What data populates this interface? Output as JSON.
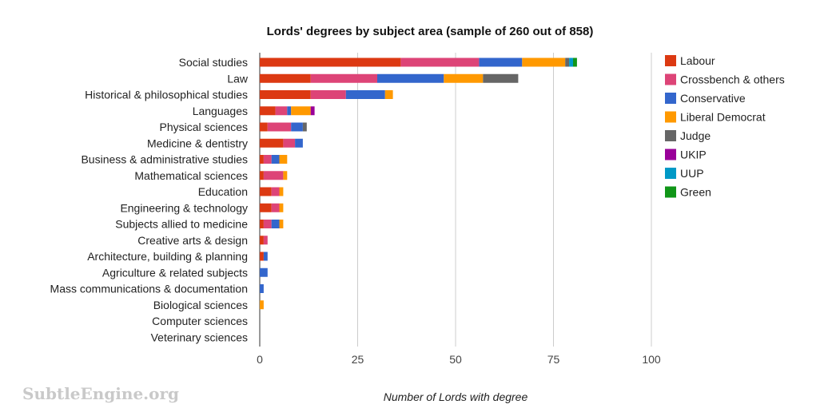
{
  "watermark": "SubtleEngine.org",
  "chart_data": {
    "type": "bar",
    "orientation": "horizontal",
    "stacked": true,
    "title": "Lords' degrees by subject area (sample of 260 out of 858)",
    "xlabel": "Number of Lords with degree",
    "ylabel": "",
    "xlim": [
      0,
      100
    ],
    "xticks": [
      0,
      25,
      50,
      75,
      100
    ],
    "grid": true,
    "legend_position": "right",
    "categories": [
      "Social studies",
      "Law",
      "Historical & philosophical studies",
      "Languages",
      "Physical sciences",
      "Medicine & dentistry",
      "Business & administrative studies",
      "Mathematical sciences",
      "Education",
      "Engineering & technology",
      "Subjects allied to medicine",
      "Creative arts & design",
      "Architecture, building & planning",
      "Agriculture & related subjects",
      "Mass communications & documentation",
      "Biological sciences",
      "Computer sciences",
      "Veterinary sciences"
    ],
    "series": [
      {
        "name": "Labour",
        "color": "#dc3912",
        "values": [
          36,
          13,
          13,
          4,
          2,
          6,
          1,
          1,
          3,
          3,
          1,
          1,
          1,
          0,
          0,
          0,
          0,
          0
        ]
      },
      {
        "name": "Crossbench & others",
        "color": "#dd4477",
        "values": [
          20,
          17,
          9,
          3,
          6,
          3,
          2,
          5,
          2,
          2,
          2,
          1,
          0,
          0,
          0,
          0,
          0,
          0
        ]
      },
      {
        "name": "Conservative",
        "color": "#3366cc",
        "values": [
          11,
          17,
          10,
          1,
          3,
          2,
          2,
          0,
          0,
          0,
          2,
          0,
          1,
          2,
          1,
          0,
          0,
          0
        ]
      },
      {
        "name": "Liberal Democrat",
        "color": "#ff9900",
        "values": [
          11,
          10,
          2,
          5,
          0,
          0,
          2,
          1,
          1,
          1,
          1,
          0,
          0,
          0,
          0,
          1,
          0,
          0
        ]
      },
      {
        "name": "Judge",
        "color": "#666666",
        "values": [
          1,
          9,
          0,
          0,
          1,
          0,
          0,
          0,
          0,
          0,
          0,
          0,
          0,
          0,
          0,
          0,
          0,
          0
        ]
      },
      {
        "name": "UKIP",
        "color": "#990099",
        "values": [
          0,
          0,
          0,
          1,
          0,
          0,
          0,
          0,
          0,
          0,
          0,
          0,
          0,
          0,
          0,
          0,
          0,
          0
        ]
      },
      {
        "name": "UUP",
        "color": "#0099c6",
        "values": [
          1,
          0,
          0,
          0,
          0,
          0,
          0,
          0,
          0,
          0,
          0,
          0,
          0,
          0,
          0,
          0,
          0,
          0
        ]
      },
      {
        "name": "Green",
        "color": "#109618",
        "values": [
          1,
          0,
          0,
          0,
          0,
          0,
          0,
          0,
          0,
          0,
          0,
          0,
          0,
          0,
          0,
          0,
          0,
          0
        ]
      }
    ]
  }
}
